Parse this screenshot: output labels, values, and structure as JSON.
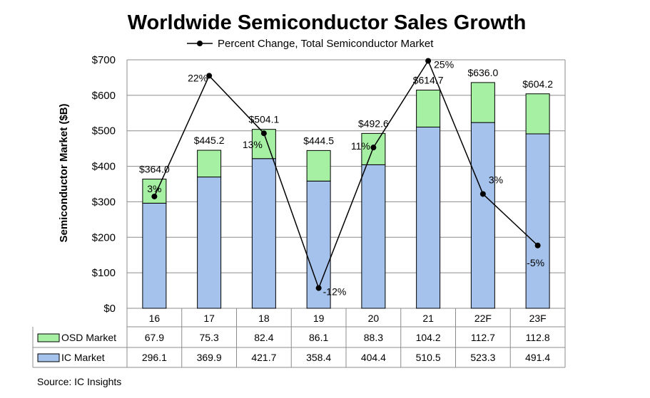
{
  "chart_data": {
    "type": "bar",
    "stacked": true,
    "title": "Worldwide Semiconductor Sales Growth",
    "ylabel": "Semiconductor Market ($B)",
    "ylim": [
      0,
      700
    ],
    "yticks": [
      "$0",
      "$100",
      "$200",
      "$300",
      "$400",
      "$500",
      "$600",
      "$700"
    ],
    "ytick_values": [
      0,
      100,
      200,
      300,
      400,
      500,
      600,
      700
    ],
    "grid": true,
    "categories": [
      "16",
      "17",
      "18",
      "19",
      "20",
      "21",
      "22F",
      "23F"
    ],
    "series": [
      {
        "name": "IC Market",
        "color": "#a4c2eb",
        "values": [
          296.1,
          369.9,
          421.7,
          358.4,
          404.4,
          510.5,
          523.3,
          491.4
        ]
      },
      {
        "name": "OSD Market",
        "color": "#a5f0a3",
        "values": [
          67.9,
          75.3,
          82.4,
          86.1,
          88.3,
          104.2,
          112.7,
          112.8
        ]
      }
    ],
    "totals": [
      "$364.0",
      "$445.2",
      "$504.1",
      "$444.5",
      "$492.6",
      "$614.7",
      "$636.0",
      "$604.2"
    ],
    "total_values": [
      364.0,
      445.2,
      504.1,
      444.5,
      492.6,
      614.7,
      636.0,
      604.2
    ],
    "line_series": {
      "name": "Percent Change, Total Semiconductor Market",
      "labels": [
        "3%",
        "22%",
        "13%",
        "-12%",
        "11%",
        "25%",
        "3%",
        "-5%"
      ],
      "values": [
        3,
        22,
        13,
        -12,
        11,
        25,
        3,
        -5
      ],
      "plot_positions": [
        315,
        655,
        493,
        57,
        453,
        697,
        322,
        177
      ],
      "color": "#000000"
    },
    "table_rows": [
      {
        "name": "OSD Market",
        "cells": [
          "67.9",
          "75.3",
          "82.4",
          "86.1",
          "88.3",
          "104.2",
          "112.7",
          "112.8"
        ]
      },
      {
        "name": "IC Market",
        "cells": [
          "296.1",
          "369.9",
          "421.7",
          "358.4",
          "404.4",
          "510.5",
          "523.3",
          "491.4"
        ]
      }
    ],
    "source": "Source: IC Insights"
  }
}
